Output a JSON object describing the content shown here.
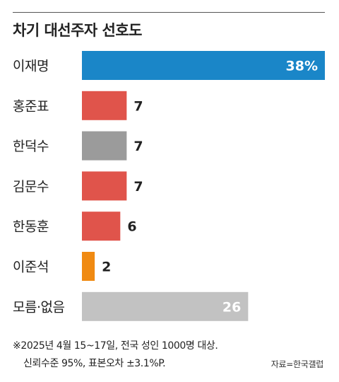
{
  "title": "차기 대선주자 선호도",
  "chart_data": {
    "type": "bar",
    "orientation": "horizontal",
    "title": "차기 대선주자 선호도",
    "xlim": [
      0,
      38
    ],
    "categories": [
      "이재명",
      "홍준표",
      "한덕수",
      "김문수",
      "한동훈",
      "이준석",
      "모름·없음"
    ],
    "values": [
      38,
      7,
      7,
      7,
      6,
      2,
      26
    ],
    "value_labels": [
      "38%",
      "7",
      "7",
      "7",
      "6",
      "2",
      "26"
    ],
    "colors": [
      "#1a86c8",
      "#e0544b",
      "#9b9b9b",
      "#e0544b",
      "#e0544b",
      "#f08a12",
      "#c2c2c2"
    ],
    "grid": false,
    "legend": "none"
  },
  "footnote": {
    "line1": "※2025년 4월 15~17일, 전국 성인 1000명 대상.",
    "line2": "신뢰수준 95%, 표본오차 ±3.1%P."
  },
  "source": "자료=한국갤럽"
}
